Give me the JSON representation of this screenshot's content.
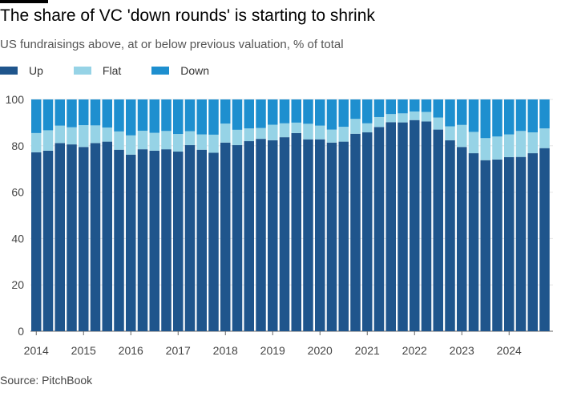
{
  "title": "The share of VC 'down rounds' is starting to shrink",
  "subtitle": "US fundraisings above, at or below previous valuation, % of total",
  "source": "Source: PitchBook",
  "chart_data": {
    "type": "bar",
    "stacked": true,
    "title": "The share of VC 'down rounds' is starting to shrink",
    "subtitle": "US fundraisings above, at or below previous valuation, % of total",
    "xlabel": "",
    "ylabel": "",
    "ylim": [
      0,
      100
    ],
    "yticks": [
      0,
      20,
      40,
      60,
      80,
      100
    ],
    "xtick_labels": [
      "2014",
      "2015",
      "2016",
      "2017",
      "2018",
      "2019",
      "2020",
      "2021",
      "2022",
      "2023",
      "2024"
    ],
    "categories_note": "quarterly, 2014 Q1 - 2024 Q4",
    "grid": true,
    "legend": "top-left",
    "colors": {
      "Up": "#1f558c",
      "Flat": "#96d3e6",
      "Down": "#1e8fcf"
    },
    "series": [
      {
        "name": "Up",
        "values": [
          77.2,
          77.9,
          81.2,
          80.6,
          79.5,
          81.2,
          81.8,
          78.3,
          76.2,
          78.5,
          77.9,
          78.5,
          77.5,
          80.3,
          78.3,
          77.0,
          81.4,
          80.3,
          82.0,
          83.0,
          82.4,
          83.7,
          85.5,
          82.8,
          82.8,
          81.4,
          81.8,
          85.2,
          85.8,
          88.1,
          90.2,
          90.1,
          91.1,
          90.5,
          87.0,
          82.4,
          79.5,
          76.8,
          73.8,
          74.1,
          75.1,
          75.2,
          76.8,
          79.0
        ]
      },
      {
        "name": "Flat",
        "values": [
          8.3,
          8.8,
          7.5,
          7.4,
          9.4,
          7.6,
          6.1,
          7.9,
          8.3,
          8.0,
          7.7,
          7.9,
          7.6,
          6.0,
          6.6,
          7.8,
          8.2,
          6.6,
          5.5,
          4.7,
          6.7,
          6.0,
          4.5,
          6.7,
          5.9,
          5.6,
          6.4,
          6.4,
          3.9,
          4.3,
          3.5,
          3.9,
          3.7,
          4.1,
          5.2,
          6.0,
          9.5,
          9.2,
          9.5,
          9.9,
          9.8,
          11.2,
          9.0,
          8.5
        ]
      },
      {
        "name": "Down",
        "values": [
          14.5,
          13.3,
          11.3,
          12.0,
          11.1,
          11.2,
          12.1,
          13.8,
          15.5,
          13.5,
          14.4,
          13.6,
          14.9,
          13.7,
          15.1,
          15.2,
          10.4,
          13.1,
          12.5,
          12.3,
          10.9,
          10.3,
          10.0,
          10.5,
          11.3,
          13.0,
          11.8,
          8.4,
          10.3,
          7.6,
          6.3,
          6.0,
          5.2,
          5.4,
          7.8,
          11.6,
          11.0,
          14.0,
          16.7,
          16.0,
          15.1,
          13.6,
          14.2,
          12.5
        ]
      }
    ]
  }
}
